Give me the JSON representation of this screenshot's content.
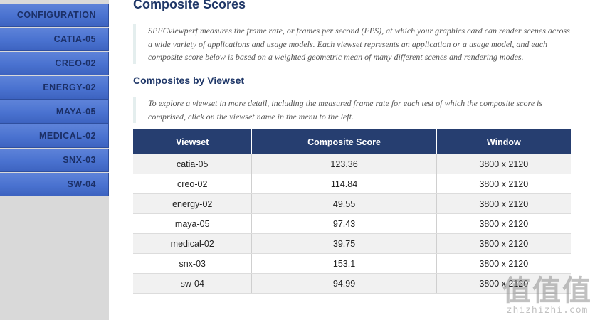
{
  "sidebar": {
    "items": [
      {
        "label": "CONFIGURATION"
      },
      {
        "label": "CATIA-05"
      },
      {
        "label": "CREO-02"
      },
      {
        "label": "ENERGY-02"
      },
      {
        "label": "MAYA-05"
      },
      {
        "label": "MEDICAL-02"
      },
      {
        "label": "SNX-03"
      },
      {
        "label": "SW-04"
      }
    ]
  },
  "main": {
    "title": "Composite Scores",
    "intro": "SPECviewperf measures the frame rate, or frames per second (FPS), at which your graphics card can render scenes across a wide variety of applications and usage models. Each viewset represents an application or a usage model, and each composite score below is based on a weighted geometric mean of many different scenes and rendering modes.",
    "subtitle": "Composites by Viewset",
    "instructions": "To explore a viewset in more detail, including the measured frame rate for each test of which the composite score is comprised, click on the viewset name in the menu to the left.",
    "table": {
      "headers": [
        "Viewset",
        "Composite Score",
        "Window"
      ],
      "rows": [
        [
          "catia-05",
          "123.36",
          "3800 x 2120"
        ],
        [
          "creo-02",
          "114.84",
          "3800 x 2120"
        ],
        [
          "energy-02",
          "49.55",
          "3800 x 2120"
        ],
        [
          "maya-05",
          "97.43",
          "3800 x 2120"
        ],
        [
          "medical-02",
          "39.75",
          "3800 x 2120"
        ],
        [
          "snx-03",
          "153.1",
          "3800 x 2120"
        ],
        [
          "sw-04",
          "94.99",
          "3800 x 2120"
        ]
      ]
    }
  },
  "watermark": {
    "mark": "值值值",
    "text": "zhizhizhi.com"
  }
}
